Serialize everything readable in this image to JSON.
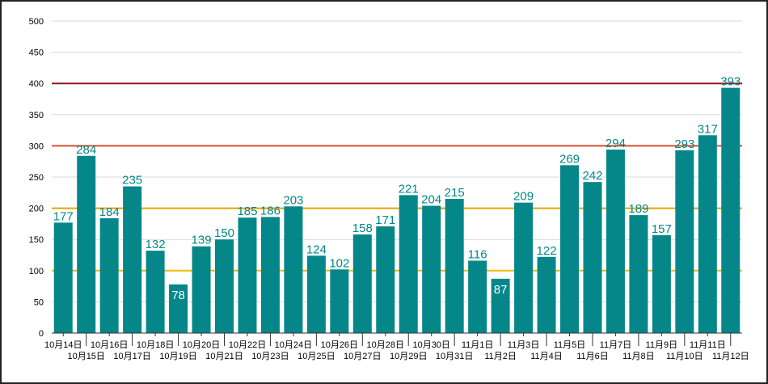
{
  "chart_data": {
    "type": "bar",
    "title": "",
    "xlabel": "",
    "ylabel": "",
    "ylim": [
      0,
      500
    ],
    "yticks": [
      0,
      50,
      100,
      150,
      200,
      250,
      300,
      350,
      400,
      450,
      500
    ],
    "grid": true,
    "legend": "none",
    "categories": [
      "10月14日",
      "10月15日",
      "10月16日",
      "10月17日",
      "10月18日",
      "10月19日",
      "10月20日",
      "10月21日",
      "10月22日",
      "10月23日",
      "10月24日",
      "10月25日",
      "10月26日",
      "10月27日",
      "10月28日",
      "10月29日",
      "10月30日",
      "10月31日",
      "11月1日",
      "11月2日",
      "11月3日",
      "11月4日",
      "11月5日",
      "11月6日",
      "11月7日",
      "11月8日",
      "11月9日",
      "11月10日",
      "11月11日",
      "11月12日"
    ],
    "values": [
      177,
      284,
      184,
      235,
      132,
      78,
      139,
      150,
      185,
      186,
      203,
      124,
      102,
      158,
      171,
      221,
      204,
      215,
      116,
      87,
      209,
      122,
      269,
      242,
      294,
      189,
      157,
      293,
      317,
      393
    ],
    "reference_lines": [
      {
        "value": 100,
        "color": "#f2b705"
      },
      {
        "value": 200,
        "color": "#e0a800"
      },
      {
        "value": 300,
        "color": "#d9502a"
      },
      {
        "value": 400,
        "color": "#8b1a1a"
      }
    ],
    "colors": {
      "bar": "#05878a",
      "label_outside": "#05878a",
      "label_inside": "#ffffff",
      "grid": "#d9d9d9"
    }
  }
}
